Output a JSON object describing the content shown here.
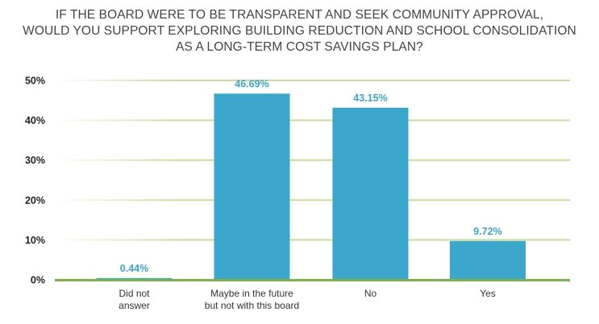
{
  "chart_data": {
    "type": "bar",
    "title": [
      "IF THE BOARD WERE TO BE TRANSPARENT AND SEEK COMMUNITY APPROVAL,",
      "WOULD YOU SUPPORT EXPLORING BUILDING REDUCTION AND SCHOOL CONSOLIDATION",
      "AS A LONG-TERM COST SAVINGS PLAN?"
    ],
    "categories": [
      [
        "Did not",
        "answer"
      ],
      [
        "Maybe in the future",
        "but not with this board"
      ],
      [
        "No"
      ],
      [
        "Yes"
      ]
    ],
    "values": [
      0.44,
      46.69,
      43.15,
      9.72
    ],
    "data_labels": [
      "0.44%",
      "46.69%",
      "43.15%",
      "9.72%"
    ],
    "xlabel": "",
    "ylabel": "",
    "ylim": [
      0,
      50
    ],
    "yticks": [
      "0%",
      "10%",
      "20%",
      "30%",
      "40%",
      "50%"
    ],
    "grid": true,
    "colors": {
      "bar": "#3ba7cc",
      "label": "#3aa5d0",
      "grid": "#c9dc94",
      "axis": "#7cb342",
      "tick": "#222222"
    }
  }
}
